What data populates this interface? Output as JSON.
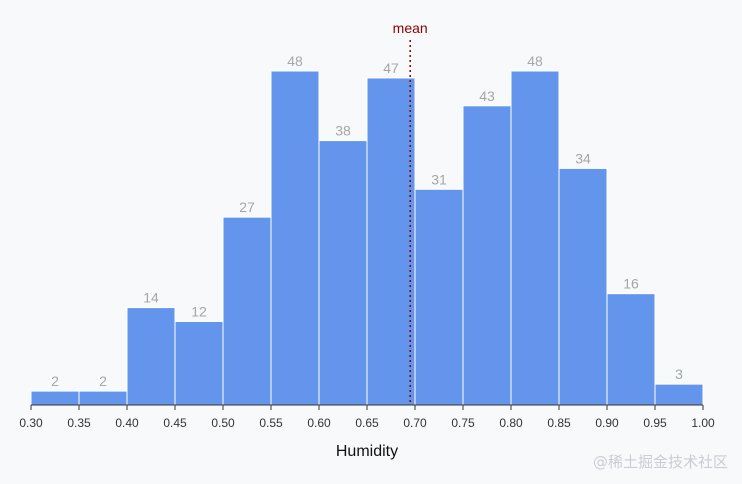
{
  "chart_data": {
    "type": "bar",
    "bins": [
      {
        "x0": 0.3,
        "x1": 0.35,
        "count": 2
      },
      {
        "x0": 0.35,
        "x1": 0.4,
        "count": 2
      },
      {
        "x0": 0.4,
        "x1": 0.45,
        "count": 14
      },
      {
        "x0": 0.45,
        "x1": 0.5,
        "count": 12
      },
      {
        "x0": 0.5,
        "x1": 0.55,
        "count": 27
      },
      {
        "x0": 0.55,
        "x1": 0.6,
        "count": 48
      },
      {
        "x0": 0.6,
        "x1": 0.65,
        "count": 38
      },
      {
        "x0": 0.65,
        "x1": 0.7,
        "count": 47
      },
      {
        "x0": 0.7,
        "x1": 0.75,
        "count": 31
      },
      {
        "x0": 0.75,
        "x1": 0.8,
        "count": 43
      },
      {
        "x0": 0.8,
        "x1": 0.85,
        "count": 48
      },
      {
        "x0": 0.85,
        "x1": 0.9,
        "count": 34
      },
      {
        "x0": 0.9,
        "x1": 0.95,
        "count": 16
      },
      {
        "x0": 0.95,
        "x1": 1.0,
        "count": 3
      }
    ],
    "x_ticks": [
      "0.30",
      "0.35",
      "0.40",
      "0.45",
      "0.50",
      "0.55",
      "0.60",
      "0.65",
      "0.70",
      "0.75",
      "0.80",
      "0.85",
      "0.90",
      "0.95",
      "1.00"
    ],
    "xlim": [
      0.3,
      1.0
    ],
    "ylim": [
      0,
      48
    ],
    "xlabel": "Humidity",
    "ylabel": "",
    "title": "",
    "mean": {
      "label": "mean",
      "value": 0.695
    },
    "bar_color": "#6495ed",
    "mean_color": "#8b0000",
    "label_color": "#a6a6a6"
  },
  "watermark": "@稀土掘金技术社区"
}
